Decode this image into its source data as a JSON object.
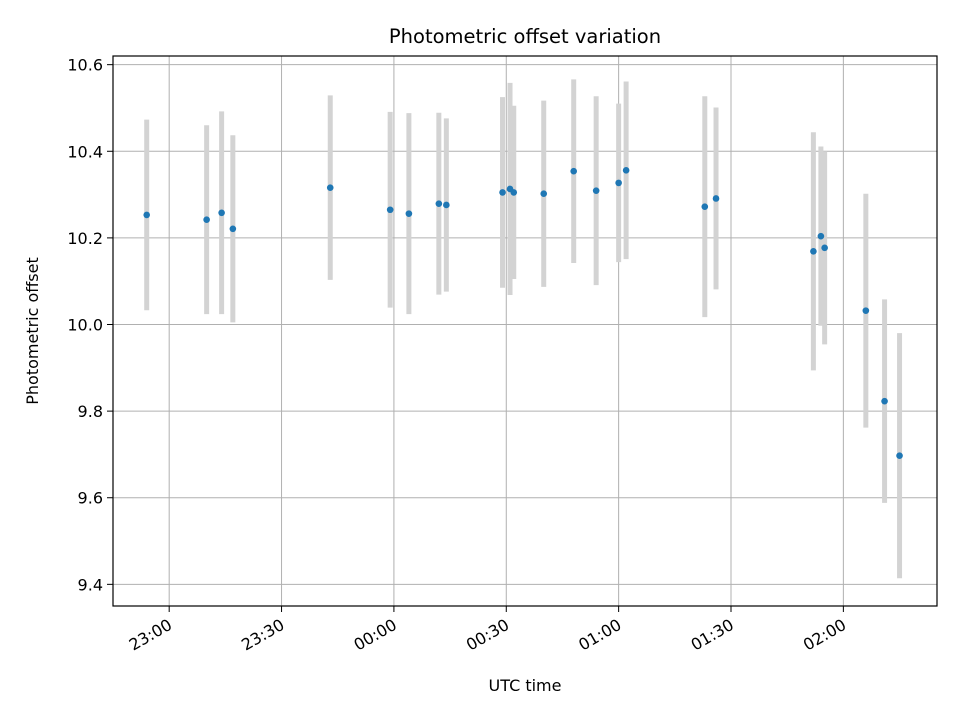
{
  "chart_data": {
    "type": "scatter",
    "title": "Photometric offset variation",
    "xlabel": "UTC time",
    "ylabel": "Photometric offset",
    "x_unit": "UTC hh:mm (times after midnight are on the following day)",
    "xlim": [
      "22:45",
      "02:25"
    ],
    "ylim": [
      9.35,
      10.62
    ],
    "grid": true,
    "x_ticks": [
      "23:00",
      "23:30",
      "00:00",
      "00:30",
      "01:00",
      "01:30",
      "02:00"
    ],
    "y_ticks": [
      9.4,
      9.6,
      9.8,
      10.0,
      10.2,
      10.4,
      10.6
    ],
    "y_tick_labels": [
      "9.4",
      "9.6",
      "9.8",
      "10.0",
      "10.2",
      "10.4",
      "10.6"
    ],
    "colors": {
      "points": "#1f77b4",
      "error_bars": "#d3d3d3",
      "grid": "#b0b0b0"
    },
    "series": [
      {
        "points": [
          {
            "x": "22:54",
            "y": 10.253,
            "yerr": 0.22
          },
          {
            "x": "23:10",
            "y": 10.242,
            "yerr": 0.218
          },
          {
            "x": "23:14",
            "y": 10.258,
            "yerr": 0.234
          },
          {
            "x": "23:17",
            "y": 10.221,
            "yerr": 0.216
          },
          {
            "x": "23:43",
            "y": 10.316,
            "yerr": 0.213
          },
          {
            "x": "23:59",
            "y": 10.265,
            "yerr": 0.226
          },
          {
            "x": "00:04",
            "y": 10.256,
            "yerr": 0.232
          },
          {
            "x": "00:12",
            "y": 10.279,
            "yerr": 0.21
          },
          {
            "x": "00:14",
            "y": 10.276,
            "yerr": 0.2
          },
          {
            "x": "00:29",
            "y": 10.305,
            "yerr": 0.22
          },
          {
            "x": "00:31",
            "y": 10.313,
            "yerr": 0.245
          },
          {
            "x": "00:32",
            "y": 10.305,
            "yerr": 0.2
          },
          {
            "x": "00:40",
            "y": 10.302,
            "yerr": 0.215
          },
          {
            "x": "00:48",
            "y": 10.354,
            "yerr": 0.212
          },
          {
            "x": "00:54",
            "y": 10.309,
            "yerr": 0.218
          },
          {
            "x": "01:00",
            "y": 10.327,
            "yerr": 0.183
          },
          {
            "x": "01:02",
            "y": 10.356,
            "yerr": 0.205
          },
          {
            "x": "01:23",
            "y": 10.272,
            "yerr": 0.255
          },
          {
            "x": "01:26",
            "y": 10.291,
            "yerr": 0.21
          },
          {
            "x": "01:52",
            "y": 10.169,
            "yerr": 0.275
          },
          {
            "x": "01:54",
            "y": 10.204,
            "yerr": 0.207
          },
          {
            "x": "01:55",
            "y": 10.177,
            "yerr": 0.223
          },
          {
            "x": "02:06",
            "y": 10.032,
            "yerr": 0.27
          },
          {
            "x": "02:11",
            "y": 9.823,
            "yerr": 0.235
          },
          {
            "x": "02:15",
            "y": 9.697,
            "yerr": 0.283
          }
        ]
      }
    ]
  }
}
